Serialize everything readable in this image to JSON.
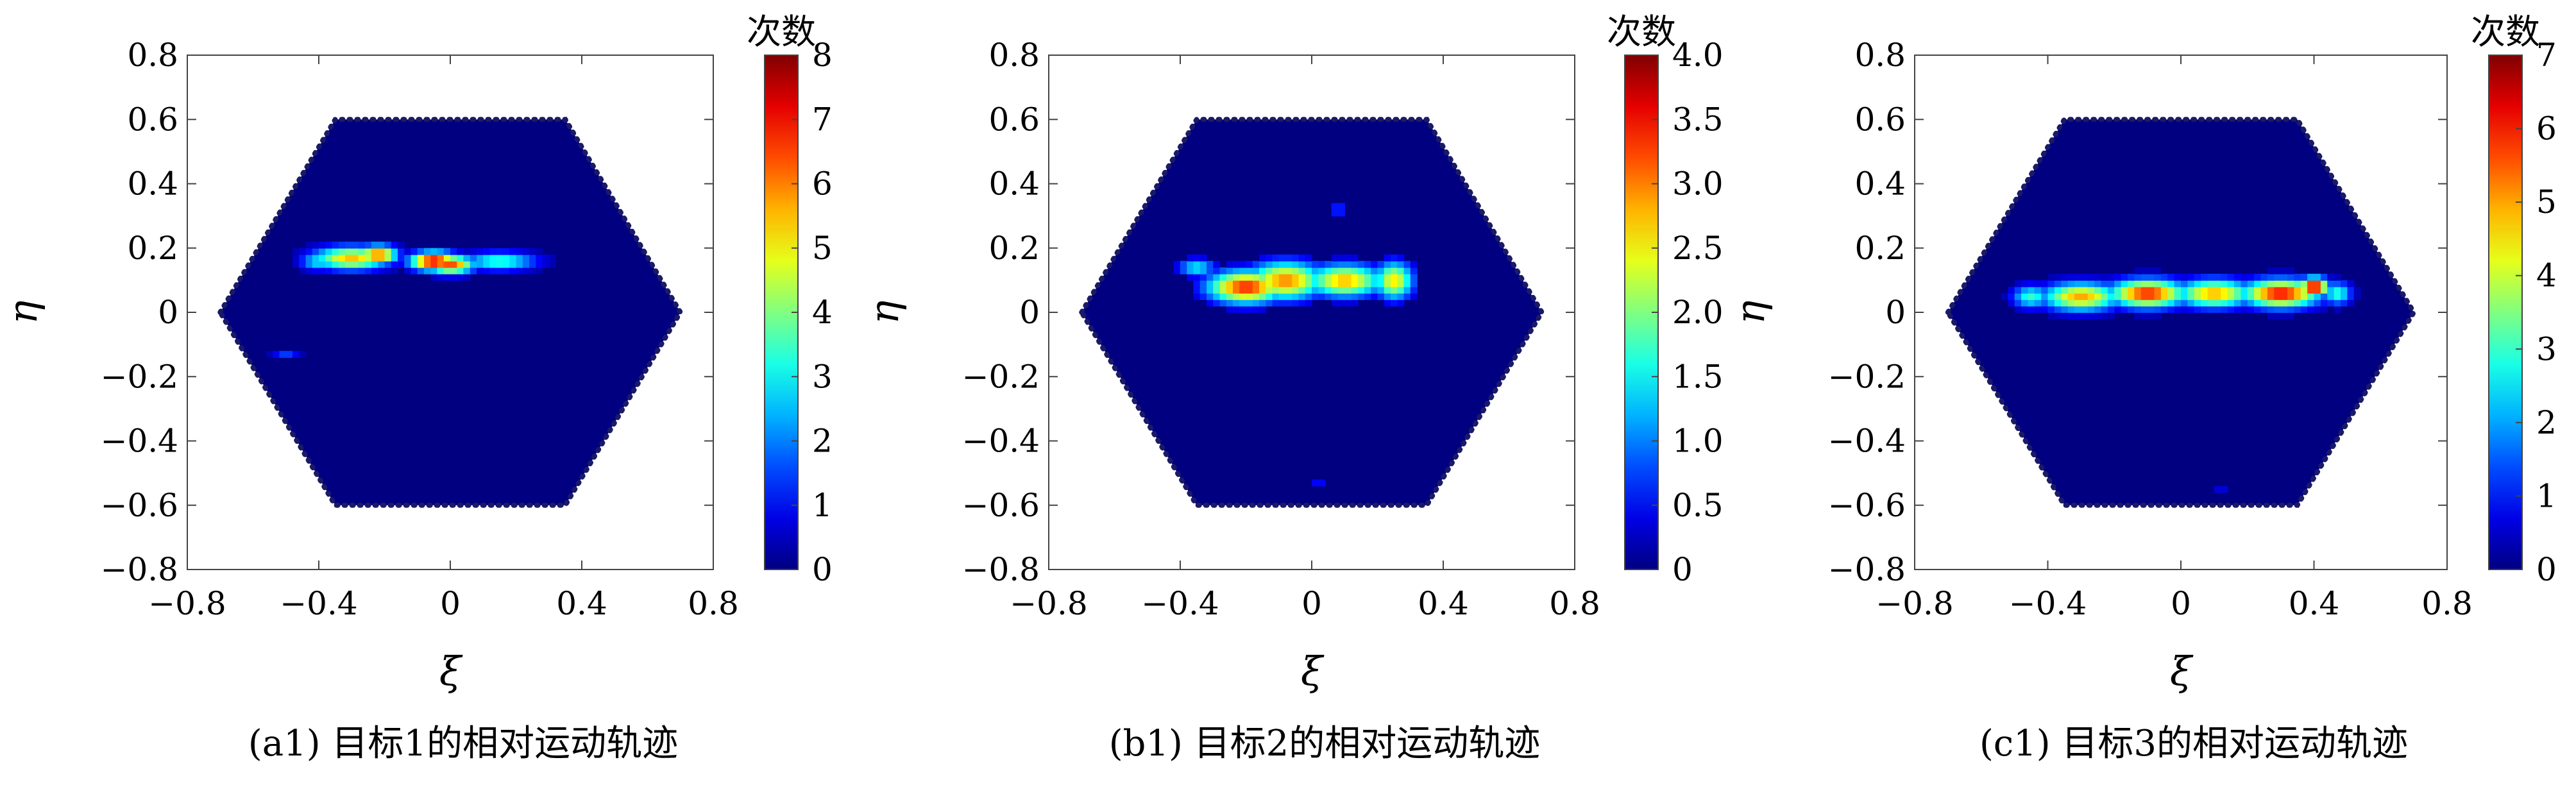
{
  "chart_data": [
    {
      "type": "heatmap",
      "caption": "(a1) 目标1的相对运动轨迹",
      "xlabel": "ξ",
      "ylabel": "η",
      "xlim": [
        -0.8,
        0.8
      ],
      "ylim": [
        -0.8,
        0.8
      ],
      "x_ticks": [
        "−0.8",
        "−0.4",
        "0",
        "0.4",
        "0.8"
      ],
      "y_ticks": [
        "0.8",
        "0.6",
        "0.4",
        "0.2",
        "0",
        "−0.2",
        "−0.4",
        "−0.6",
        "−0.8"
      ],
      "colorbar": {
        "title": "次数",
        "min": 0,
        "max": 8,
        "ticks": [
          "8",
          "7",
          "6",
          "5",
          "4",
          "3",
          "2",
          "1",
          "0"
        ]
      },
      "hexagon": {
        "half_width": 0.7,
        "half_height": 0.6,
        "top_half_width": 0.35
      },
      "background_value": 0,
      "blobs": [
        {
          "x": -0.3,
          "y": 0.17,
          "value": 5.5,
          "sx": 0.08,
          "sy": 0.025
        },
        {
          "x": -0.22,
          "y": 0.18,
          "value": 6.5,
          "sx": 0.04,
          "sy": 0.02
        },
        {
          "x": -0.05,
          "y": 0.16,
          "value": 7.5,
          "sx": 0.05,
          "sy": 0.02
        },
        {
          "x": 0.0,
          "y": 0.15,
          "value": 6.5,
          "sx": 0.05,
          "sy": 0.02
        },
        {
          "x": 0.15,
          "y": 0.16,
          "value": 3.5,
          "sx": 0.08,
          "sy": 0.02
        },
        {
          "x": -0.4,
          "y": 0.16,
          "value": 3.0,
          "sx": 0.04,
          "sy": 0.02
        },
        {
          "x": -0.5,
          "y": -0.13,
          "value": 1.5,
          "sx": 0.03,
          "sy": 0.01
        }
      ]
    },
    {
      "type": "heatmap",
      "caption": "(b1) 目标2的相对运动轨迹",
      "xlabel": "ξ",
      "ylabel": "η",
      "xlim": [
        -0.8,
        0.8
      ],
      "ylim": [
        -0.8,
        0.8
      ],
      "x_ticks": [
        "−0.8",
        "−0.4",
        "0",
        "0.4",
        "0.8"
      ],
      "y_ticks": [
        "0.8",
        "0.6",
        "0.4",
        "0.2",
        "0",
        "−0.2",
        "−0.4",
        "−0.6",
        "−0.8"
      ],
      "colorbar": {
        "title": "次数",
        "min": 0,
        "max": 4,
        "ticks": [
          "4.0",
          "3.5",
          "3.0",
          "2.5",
          "2.0",
          "1.5",
          "1.0",
          "0.5",
          "0"
        ]
      },
      "hexagon": {
        "half_width": 0.7,
        "half_height": 0.6,
        "top_half_width": 0.35
      },
      "background_value": 0,
      "blobs": [
        {
          "x": -0.2,
          "y": 0.08,
          "value": 3.4,
          "sx": 0.08,
          "sy": 0.035
        },
        {
          "x": -0.08,
          "y": 0.1,
          "value": 3.0,
          "sx": 0.08,
          "sy": 0.04
        },
        {
          "x": 0.1,
          "y": 0.1,
          "value": 2.8,
          "sx": 0.08,
          "sy": 0.035
        },
        {
          "x": 0.25,
          "y": 0.1,
          "value": 2.6,
          "sx": 0.04,
          "sy": 0.04
        },
        {
          "x": -0.35,
          "y": 0.14,
          "value": 1.5,
          "sx": 0.04,
          "sy": 0.02
        },
        {
          "x": -0.18,
          "y": 0.08,
          "value": 4.0,
          "sx": 0.015,
          "sy": 0.012
        },
        {
          "x": 0.08,
          "y": 0.32,
          "value": 1.0,
          "sx": 0.012,
          "sy": 0.015
        },
        {
          "x": 0.02,
          "y": -0.53,
          "value": 0.8,
          "sx": 0.01,
          "sy": 0.012
        }
      ]
    },
    {
      "type": "heatmap",
      "caption": "(c1) 目标3的相对运动轨迹",
      "xlabel": "ξ",
      "ylabel": "η",
      "xlim": [
        -0.8,
        0.8
      ],
      "ylim": [
        -0.8,
        0.8
      ],
      "x_ticks": [
        "−0.8",
        "−0.4",
        "0",
        "0.4",
        "0.8"
      ],
      "y_ticks": [
        "0.8",
        "0.6",
        "0.4",
        "0.2",
        "0",
        "−0.2",
        "−0.4",
        "−0.6",
        "−0.8"
      ],
      "colorbar": {
        "title": "次数",
        "min": 0,
        "max": 7,
        "ticks": [
          "7",
          "6",
          "5",
          "4",
          "3",
          "2",
          "1",
          "0"
        ]
      },
      "hexagon": {
        "half_width": 0.7,
        "half_height": 0.6,
        "top_half_width": 0.35
      },
      "background_value": 0,
      "blobs": [
        {
          "x": -0.3,
          "y": 0.05,
          "value": 5.0,
          "sx": 0.08,
          "sy": 0.03
        },
        {
          "x": -0.1,
          "y": 0.06,
          "value": 6.0,
          "sx": 0.08,
          "sy": 0.03
        },
        {
          "x": 0.1,
          "y": 0.06,
          "value": 5.0,
          "sx": 0.08,
          "sy": 0.03
        },
        {
          "x": 0.3,
          "y": 0.06,
          "value": 6.2,
          "sx": 0.08,
          "sy": 0.03
        },
        {
          "x": 0.4,
          "y": 0.08,
          "value": 6.8,
          "sx": 0.03,
          "sy": 0.02
        },
        {
          "x": -0.45,
          "y": 0.05,
          "value": 3.0,
          "sx": 0.04,
          "sy": 0.025
        },
        {
          "x": 0.47,
          "y": 0.06,
          "value": 3.0,
          "sx": 0.03,
          "sy": 0.025
        },
        {
          "x": 0.12,
          "y": -0.55,
          "value": 1.0,
          "sx": 0.01,
          "sy": 0.012
        }
      ]
    }
  ]
}
